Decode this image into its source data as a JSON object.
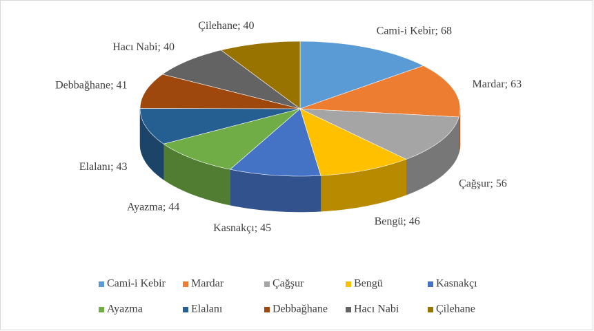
{
  "chart_data": {
    "type": "pie",
    "categories": [
      "Cami-i Kebir",
      "Mardar",
      "Çağşur",
      "Bengü",
      "Kasnakçı",
      "Ayazma",
      "Elalanı",
      "Debbağhane",
      "Hacı Nabi",
      "Çilehane"
    ],
    "values": [
      68,
      63,
      56,
      46,
      45,
      44,
      43,
      41,
      40,
      40
    ],
    "value_labels": [
      "Cami-i Kebir; 68",
      "Mardar; 63",
      "Çağşur; 56",
      "Bengü; 46",
      "Kasnakçı; 45",
      "Ayazma; 44",
      "Elalanı; 43",
      "Debbağhane; 41",
      "Hacı Nabi; 40",
      "Çilehane; 40"
    ],
    "colors": [
      "#5b9bd5",
      "#ed7d31",
      "#a5a5a5",
      "#ffc000",
      "#4472c4",
      "#70ad47",
      "#255e91",
      "#9e480e",
      "#636363",
      "#997300"
    ],
    "legend": "bottom"
  }
}
